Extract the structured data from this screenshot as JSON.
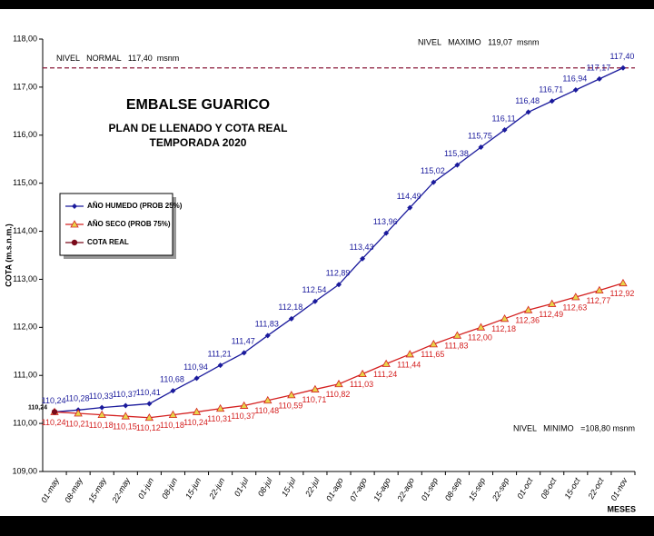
{
  "chart_data": {
    "type": "line",
    "title": "EMBALSE GUARICO",
    "subtitle": "PLAN DE LLENADO Y COTA REAL",
    "subtitle2": "TEMPORADA 2020",
    "y_label": "COTA (m.s.n.m.)",
    "x_label": "MESES",
    "annotations": [
      "NIVEL   MAXIMO   119,07  msnm",
      "NIVEL   MINIMO   =108,80 msnm"
    ],
    "reference_line": {
      "value": 117.4,
      "label": "NIVEL   NORMAL   117,40  msnm",
      "color": "#8b1a3a"
    },
    "categories": [
      "01-may",
      "08-may",
      "15-may",
      "22-may",
      "01-jun",
      "08-jun",
      "15-jun",
      "22-jun",
      "01-jul",
      "08-jul",
      "15-jul",
      "22-jul",
      "01-ago",
      "07-ago",
      "15-ago",
      "22-ago",
      "01-sep",
      "08-sep",
      "15-sep",
      "22-sep",
      "01-oct",
      "08-oct",
      "15-oct",
      "22-oct",
      "01-nov"
    ],
    "series": [
      {
        "name": "AÑO HUMEDO (PROB 25%)",
        "color": "#1a1a9c",
        "marker": "diamond",
        "values": [
          110.24,
          110.28,
          110.33,
          110.37,
          110.41,
          110.68,
          110.94,
          111.21,
          111.47,
          111.83,
          112.18,
          112.54,
          112.89,
          113.43,
          113.96,
          114.49,
          115.02,
          115.38,
          115.75,
          116.11,
          116.48,
          116.71,
          116.94,
          117.17,
          117.4
        ],
        "value_labels": [
          "110,24",
          "110,28",
          "110,33",
          "110,37",
          "110,41",
          "110,68",
          "110,94",
          "111,21",
          "111,47",
          "111,83",
          "112,18",
          "112,54",
          "112,89",
          "113,43",
          "113,96",
          "114,49",
          "115,02",
          "115,38",
          "115,75",
          "116,11",
          "116,48",
          "116,71",
          "116,94",
          "117,17",
          "117,40"
        ]
      },
      {
        "name": "AÑO SECO (PROB 75%)",
        "color": "#d42020",
        "marker": "triangle",
        "values": [
          110.24,
          110.21,
          110.18,
          110.15,
          110.12,
          110.18,
          110.24,
          110.31,
          110.37,
          110.48,
          110.59,
          110.71,
          110.82,
          111.03,
          111.24,
          111.44,
          111.65,
          111.83,
          112.0,
          112.18,
          112.36,
          112.49,
          112.63,
          112.77,
          112.92
        ],
        "value_labels": [
          "110,24",
          "110,21",
          "110,18",
          "110,15",
          "110,12",
          "110,18",
          "110,24",
          "110,31",
          "110,37",
          "110,48",
          "110,59",
          "110,71",
          "110,82",
          "111,03",
          "111,24",
          "111,44",
          "111,65",
          "111,83",
          "112,00",
          "112,18",
          "112,36",
          "112,49",
          "112,63",
          "112,77",
          "112,92"
        ]
      },
      {
        "name": "COTA REAL",
        "color": "#7a0a1a",
        "marker": "circle",
        "values": [
          110.24,
          null,
          null,
          null,
          null,
          null,
          null,
          null,
          null,
          null,
          null,
          null,
          null,
          null,
          null,
          null,
          null,
          null,
          null,
          null,
          null,
          null,
          null,
          null,
          null
        ],
        "value_labels": [
          "110,24",
          null,
          null,
          null,
          null,
          null,
          null,
          null,
          null,
          null,
          null,
          null,
          null,
          null,
          null,
          null,
          null,
          null,
          null,
          null,
          null,
          null,
          null,
          null,
          null
        ]
      }
    ],
    "ylim": [
      109,
      118
    ],
    "yticks": [
      {
        "value": 109,
        "label": "109,00"
      },
      {
        "value": 110,
        "label": "110,00"
      },
      {
        "value": 111,
        "label": "111,00"
      },
      {
        "value": 112,
        "label": "112,00"
      },
      {
        "value": 113,
        "label": "113,00"
      },
      {
        "value": 114,
        "label": "114,00"
      },
      {
        "value": 115,
        "label": "115,00"
      },
      {
        "value": 116,
        "label": "116,00"
      },
      {
        "value": 117,
        "label": "117,00"
      },
      {
        "value": 118,
        "label": "118,00"
      }
    ],
    "grid": false
  }
}
